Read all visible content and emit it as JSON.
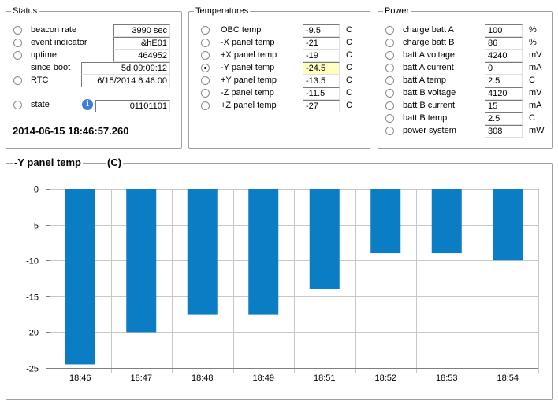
{
  "status": {
    "title": "Status",
    "rows": [
      {
        "label": "beacon rate",
        "value": "3990 sec",
        "selected": false
      },
      {
        "label": "event indicator",
        "value": "&hE01",
        "selected": false
      },
      {
        "label": "uptime",
        "value": "464952",
        "selected": false
      },
      {
        "label": "since boot",
        "value": "5d 09:09:12"
      },
      {
        "label": "RTC",
        "value": "6/15/2014 6:46:00",
        "selected": false
      },
      {
        "label": "state",
        "value": "01101101",
        "selected": false
      }
    ],
    "datetime": "2014-06-15 18:46:57.260"
  },
  "temperatures": {
    "title": "Temperatures",
    "rows": [
      {
        "label": "OBC temp",
        "value": "-9.5",
        "unit": "C",
        "selected": false
      },
      {
        "label": "-X panel temp",
        "value": "-21",
        "unit": "C",
        "selected": false
      },
      {
        "label": "+X panel temp",
        "value": "-19",
        "unit": "C",
        "selected": false
      },
      {
        "label": "-Y panel temp",
        "value": "-24.5",
        "unit": "C",
        "selected": true
      },
      {
        "label": "+Y panel temp",
        "value": "-13.5",
        "unit": "C",
        "selected": false
      },
      {
        "label": "-Z panel temp",
        "value": "-11.5",
        "unit": "C",
        "selected": false
      },
      {
        "label": "+Z panel temp",
        "value": "-27",
        "unit": "C",
        "selected": false
      }
    ]
  },
  "power": {
    "title": "Power",
    "rows": [
      {
        "label": "charge batt A",
        "value": "100",
        "unit": "%"
      },
      {
        "label": "charge batt B",
        "value": "86",
        "unit": "%"
      },
      {
        "label": "batt A voltage",
        "value": "4240",
        "unit": "mV"
      },
      {
        "label": "batt A current",
        "value": "0",
        "unit": "mA"
      },
      {
        "label": "batt A temp",
        "value": "2.5",
        "unit": "C"
      },
      {
        "label": "batt B voltage",
        "value": "4120",
        "unit": "mV"
      },
      {
        "label": "batt B current",
        "value": "15",
        "unit": "mA"
      },
      {
        "label": "batt B temp",
        "value": "2.5",
        "unit": "C"
      },
      {
        "label": "power system",
        "value": "308",
        "unit": "mW"
      }
    ]
  },
  "chart_panel": {
    "title": "-Y panel temp",
    "unit": "(C)"
  },
  "chart_data": {
    "type": "bar",
    "categories": [
      "18:46",
      "18:47",
      "18:48",
      "18:49",
      "18:51",
      "18:52",
      "18:53",
      "18:54"
    ],
    "values": [
      -24.5,
      -20,
      -17.5,
      -17.5,
      -14,
      -9,
      -9,
      -10
    ],
    "title": "-Y panel temp",
    "ylabel": "(C)",
    "ylim": [
      -25,
      0
    ],
    "yticks": [
      0,
      -5,
      -10,
      -15,
      -20,
      -25
    ],
    "grid": true,
    "bar_color": "#0a7dc5"
  },
  "colors": {
    "bar": "#0a7dc5",
    "highlight_field": "#ffffc0",
    "info_icon": "#3d7fd1"
  },
  "icons": {
    "state_info": "info-icon"
  }
}
